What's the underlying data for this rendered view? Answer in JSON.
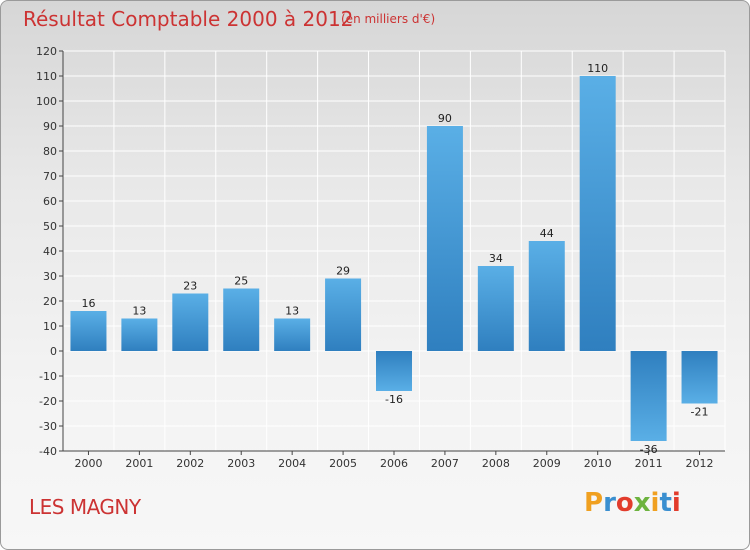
{
  "header": {
    "title": "Résultat Comptable 2000 à 2012",
    "subtitle": "(en milliers d'€)"
  },
  "footer": {
    "commune": "LES MAGNY",
    "logo_letters": [
      {
        "char": "P",
        "color": "#f0a020"
      },
      {
        "char": "r",
        "color": "#3a8fd0"
      },
      {
        "char": "o",
        "color": "#e23c2c"
      },
      {
        "char": "x",
        "color": "#6db33f"
      },
      {
        "char": "i",
        "color": "#f0a020"
      },
      {
        "char": "t",
        "color": "#3a8fd0"
      },
      {
        "char": "i",
        "color": "#e23c2c"
      }
    ]
  },
  "colors": {
    "title": "#cc3333",
    "bar_top": "#5aafe6",
    "bar_bottom": "#2f7fbf",
    "grid": "#ffffff",
    "axis": "#444444"
  },
  "chart_data": {
    "type": "bar",
    "title": "Résultat Comptable 2000 à 2012",
    "xlabel": "",
    "ylabel": "(en milliers d'€)",
    "categories": [
      "2000",
      "2001",
      "2002",
      "2003",
      "2004",
      "2005",
      "2006",
      "2007",
      "2008",
      "2009",
      "2010",
      "2011",
      "2012"
    ],
    "values": [
      16,
      13,
      23,
      25,
      13,
      29,
      -16,
      90,
      34,
      44,
      110,
      -36,
      -21
    ],
    "labels": [
      "16",
      "13",
      "23",
      "25",
      "13",
      "29",
      "-16",
      "90",
      "34",
      "44",
      "110",
      "-36",
      "-21"
    ],
    "ylim": [
      -40,
      120
    ],
    "yticks": [
      120,
      110,
      100,
      90,
      80,
      70,
      60,
      50,
      40,
      30,
      20,
      10,
      0,
      -10,
      -20,
      -30,
      -40
    ],
    "grid": true
  }
}
